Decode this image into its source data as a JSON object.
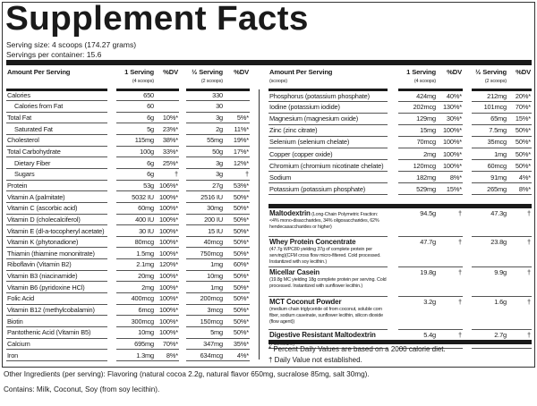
{
  "title": "Supplement Facts",
  "serving_size": "Serving size: 4 scoops (174.27 grams)",
  "servings_per_container": "Servings per container: 15.6",
  "header": {
    "amount": "Amount Per Serving",
    "amount_sub": "(scoops)",
    "serving1": "1 Serving",
    "serving1_sub": "(4 scoops)",
    "dv": "%DV",
    "serving2": "½ Serving",
    "serving2_sub": "(2 scoops)"
  },
  "left_rows": [
    {
      "name": "Calories",
      "a1": "650",
      "d1": "",
      "a2": "330",
      "d2": ""
    },
    {
      "name": "Calories from Fat",
      "a1": "60",
      "d1": "",
      "a2": "30",
      "d2": "",
      "indent": true
    },
    {
      "name": "Total Fat",
      "a1": "6g",
      "d1": "10%*",
      "a2": "3g",
      "d2": "5%*"
    },
    {
      "name": "Saturated Fat",
      "a1": "5g",
      "d1": "23%*",
      "a2": "2g",
      "d2": "11%*",
      "indent": true
    },
    {
      "name": "Cholesterol",
      "a1": "115mg",
      "d1": "38%*",
      "a2": "55mg",
      "d2": "19%*"
    },
    {
      "name": "Total Carbohydrate",
      "a1": "100g",
      "d1": "33%*",
      "a2": "50g",
      "d2": "17%*"
    },
    {
      "name": "Dietary Fiber",
      "a1": "6g",
      "d1": "25%*",
      "a2": "3g",
      "d2": "12%*",
      "indent": true
    },
    {
      "name": "Sugars",
      "a1": "6g",
      "d1": "†",
      "a2": "3g",
      "d2": "†",
      "indent": true
    },
    {
      "name": "Protein",
      "a1": "53g",
      "d1": "106%*",
      "a2": "27g",
      "d2": "53%*"
    },
    {
      "name": "Vitamin A (palmitate)",
      "a1": "5032 IU",
      "d1": "100%*",
      "a2": "2516 IU",
      "d2": "50%*"
    },
    {
      "name": "Vitamin C (ascorbic acid)",
      "a1": "60mg",
      "d1": "100%*",
      "a2": "30mg",
      "d2": "50%*"
    },
    {
      "name": "Vitamin D (cholecalciferol)",
      "a1": "400 IU",
      "d1": "100%*",
      "a2": "200 IU",
      "d2": "50%*"
    },
    {
      "name": "Vitamin E (dl-a-tocopheryl acetate)",
      "a1": "30 IU",
      "d1": "100%*",
      "a2": "15 IU",
      "d2": "50%*"
    },
    {
      "name": "Vitamin K (phytonadione)",
      "a1": "80mcg",
      "d1": "100%*",
      "a2": "40mcg",
      "d2": "50%*"
    },
    {
      "name": "Thiamin (thiamine mononitrate)",
      "a1": "1.5mg",
      "d1": "100%*",
      "a2": "750mcg",
      "d2": "50%*"
    },
    {
      "name": "Riboflavin (Vitamin B2)",
      "a1": "2.1mg",
      "d1": "120%*",
      "a2": "1mg",
      "d2": "60%*"
    },
    {
      "name": "Vitamin B3 (niacinamide)",
      "a1": "20mg",
      "d1": "100%*",
      "a2": "10mg",
      "d2": "50%*"
    },
    {
      "name": "Vitamin B6 (pyridoxine HCl)",
      "a1": "2mg",
      "d1": "100%*",
      "a2": "1mg",
      "d2": "50%*"
    },
    {
      "name": "Folic Acid",
      "a1": "400mcg",
      "d1": "100%*",
      "a2": "200mcg",
      "d2": "50%*"
    },
    {
      "name": "Vitamin B12 (methylcobalamin)",
      "a1": "6mcg",
      "d1": "100%*",
      "a2": "3mcg",
      "d2": "50%*"
    },
    {
      "name": "Biotin",
      "a1": "300mcg",
      "d1": "100%*",
      "a2": "150mcg",
      "d2": "50%*"
    },
    {
      "name": "Pantothenic Acid (Vitamin B5)",
      "a1": "10mg",
      "d1": "100%*",
      "a2": "5mg",
      "d2": "50%*"
    },
    {
      "name": "Calcium",
      "a1": "695mg",
      "d1": "70%*",
      "a2": "347mg",
      "d2": "35%*"
    },
    {
      "name": "Iron",
      "a1": "1.3mg",
      "d1": "8%*",
      "a2": "634mcg",
      "d2": "4%*"
    }
  ],
  "right_rows": [
    {
      "name": "Phosphorus (potassium phosphate)",
      "a1": "424mg",
      "d1": "40%*",
      "a2": "212mg",
      "d2": "20%*"
    },
    {
      "name": "Iodine (potassium iodide)",
      "a1": "202mcg",
      "d1": "130%*",
      "a2": "101mcg",
      "d2": "70%*"
    },
    {
      "name": "Magnesium (magnesium oxide)",
      "a1": "129mg",
      "d1": "30%*",
      "a2": "65mg",
      "d2": "15%*"
    },
    {
      "name": "Zinc (zinc citrate)",
      "a1": "15mg",
      "d1": "100%*",
      "a2": "7.5mg",
      "d2": "50%*"
    },
    {
      "name": "Selenium (selenium chelate)",
      "a1": "70mcg",
      "d1": "100%*",
      "a2": "35mcg",
      "d2": "50%*"
    },
    {
      "name": "Copper (copper oxide)",
      "a1": "2mg",
      "d1": "100%*",
      "a2": "1mg",
      "d2": "50%*"
    },
    {
      "name": "Chromium (chromium nicotinate chelate)",
      "a1": "120mcg",
      "d1": "100%*",
      "a2": "60mcg",
      "d2": "50%*"
    },
    {
      "name": "Sodium",
      "a1": "182mg",
      "d1": "8%*",
      "a2": "91mg",
      "d2": "4%*"
    },
    {
      "name": "Potassium (potassium phosphate)",
      "a1": "529mg",
      "d1": "15%*",
      "a2": "265mg",
      "d2": "8%*"
    }
  ],
  "blends": [
    {
      "name": "Maltodextrin",
      "inline": " (Long-Chain Polymetric Fraction:",
      "desc": "<4% mono-disaccharides, 34% oligosaccharides, 62% hendecasaccharides or higher)",
      "a1": "94.5g",
      "d1": "†",
      "a2": "47.3g",
      "d2": "†"
    },
    {
      "name": "Whey Protein Concentrate",
      "inline": "",
      "desc": "(47.7g WPC80 yielding 37g of complete protein per serving)(CFM cross flow micro-filtered. Cold processed. Instantized with soy lecithin.)",
      "a1": "47.7g",
      "d1": "†",
      "a2": "23.8g",
      "d2": "†"
    },
    {
      "name": "Micellar Casein",
      "inline": "",
      "desc": "(19.8g MC yielding 18g complete protein per serving. Cold processed. Instantized with sunflower lecithin.)",
      "a1": "19.8g",
      "d1": "†",
      "a2": "9.9g",
      "d2": "†"
    },
    {
      "name": "MCT Coconut Powder",
      "inline": "",
      "desc": "(medium chain triglyceride oil from coconut, soluble corn fiber, sodium caseinate, sunflower lecithin, silicon dioxide (flow agent))",
      "a1": "3.2g",
      "d1": "†",
      "a2": "1.6g",
      "d2": "†"
    },
    {
      "name": "Digestive Resistant Maltodextrin",
      "inline": " (Fibersol2®)",
      "desc": "",
      "a1": "5.4g",
      "d1": "†",
      "a2": "2.7g",
      "d2": "†"
    }
  ],
  "footnotes": {
    "percent": "* Percent Daily Values are based on a 2000 calorie diet.",
    "dagger": "† Daily Value not established."
  },
  "other_ingredients": "Other Ingredients (per serving): Flavoring (natural cocoa 2.2g, natural flavor 650mg, sucralose 85mg, salt 30mg).",
  "contains": "Contains: Milk, Coconut, Soy (from soy lecithin)."
}
